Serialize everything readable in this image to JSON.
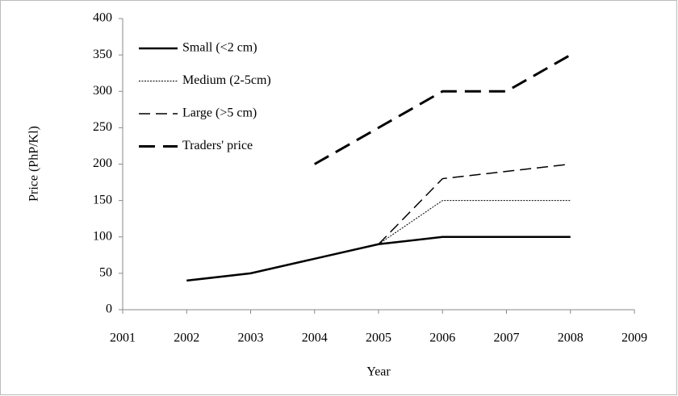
{
  "chart_data": {
    "type": "line",
    "x_label": "Year",
    "y_label": "Price (PhP/Kl)",
    "x": [
      2002,
      2003,
      2004,
      2005,
      2006,
      2007,
      2008
    ],
    "series": [
      {
        "name": "Small (<2 cm)",
        "color": "#000000",
        "line_style": "solid",
        "values": [
          40,
          50,
          70,
          90,
          100,
          100,
          100
        ]
      },
      {
        "name": "Medium (2-5cm)",
        "color": "#000000",
        "line_style": "dotted",
        "values": [
          null,
          null,
          null,
          90,
          150,
          150,
          150
        ]
      },
      {
        "name": "Large (>5 cm)",
        "color": "#000000",
        "line_style": "dashed",
        "values": [
          null,
          null,
          null,
          90,
          180,
          190,
          200
        ]
      },
      {
        "name": "Traders' price",
        "color": "#000000",
        "line_style": "long-dashed",
        "values": [
          null,
          null,
          200,
          250,
          300,
          300,
          350
        ]
      }
    ],
    "xlim": [
      2001,
      2009
    ],
    "xticks": [
      2001,
      2002,
      2003,
      2004,
      2005,
      2006,
      2007,
      2008,
      2009
    ],
    "ylim": [
      0,
      400
    ],
    "yticks": [
      0,
      50,
      100,
      150,
      200,
      250,
      300,
      350,
      400
    ],
    "legend": "upper-left"
  }
}
